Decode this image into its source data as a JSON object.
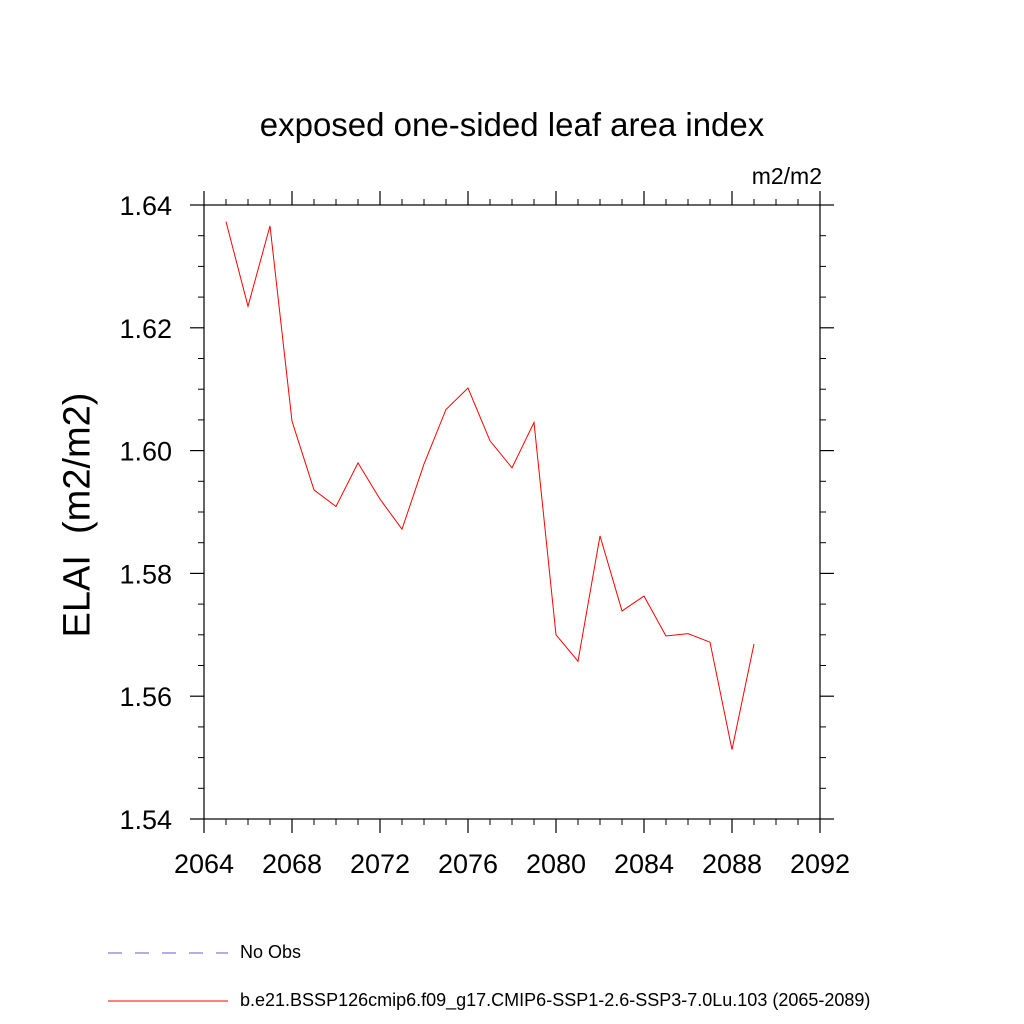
{
  "chart_data": {
    "type": "line",
    "title": "exposed one-sided leaf area index",
    "units": "m2/m2",
    "ylabel": "ELAI  (m2/m2)",
    "xlabel": "",
    "xlim": [
      2064,
      2092
    ],
    "ylim": [
      1.54,
      1.64
    ],
    "xticks": [
      2064,
      2068,
      2072,
      2076,
      2080,
      2084,
      2088,
      2092
    ],
    "xtick_labels": [
      "2064",
      "2068",
      "2072",
      "2076",
      "2080",
      "2084",
      "2088",
      "2092"
    ],
    "yticks": [
      1.54,
      1.56,
      1.58,
      1.6,
      1.62,
      1.64
    ],
    "ytick_labels": [
      "1.54",
      "1.56",
      "1.58",
      "1.60",
      "1.62",
      "1.64"
    ],
    "grid": false,
    "legend_position": "bottom",
    "series": [
      {
        "name": "b.e21.BSSP126cmip6.f09_g17.CMIP6-SSP1-2.6-SSP3-7.0Lu.103 (2065-2089)",
        "color": "#ff0000",
        "x": [
          2065,
          2066,
          2067,
          2068,
          2069,
          2070,
          2071,
          2072,
          2073,
          2074,
          2075,
          2076,
          2077,
          2078,
          2079,
          2080,
          2081,
          2082,
          2083,
          2084,
          2085,
          2086,
          2087,
          2088,
          2089
        ],
        "y": [
          1.6373,
          1.6235,
          1.6366,
          1.6048,
          1.5936,
          1.5909,
          1.598,
          1.5921,
          1.5872,
          1.5978,
          1.6067,
          1.6102,
          1.6016,
          1.5972,
          1.6046,
          1.57,
          1.5657,
          1.5861,
          1.5739,
          1.5763,
          1.5698,
          1.5702,
          1.5688,
          1.5513,
          1.5685
        ]
      }
    ],
    "legend": [
      {
        "label": "No Obs",
        "color": "#6a5acd",
        "style": "dashed"
      },
      {
        "label": "b.e21.BSSP126cmip6.f09_g17.CMIP6-SSP1-2.6-SSP3-7.0Lu.103 (2065-2089)",
        "color": "#ff0000",
        "style": "solid"
      }
    ]
  }
}
